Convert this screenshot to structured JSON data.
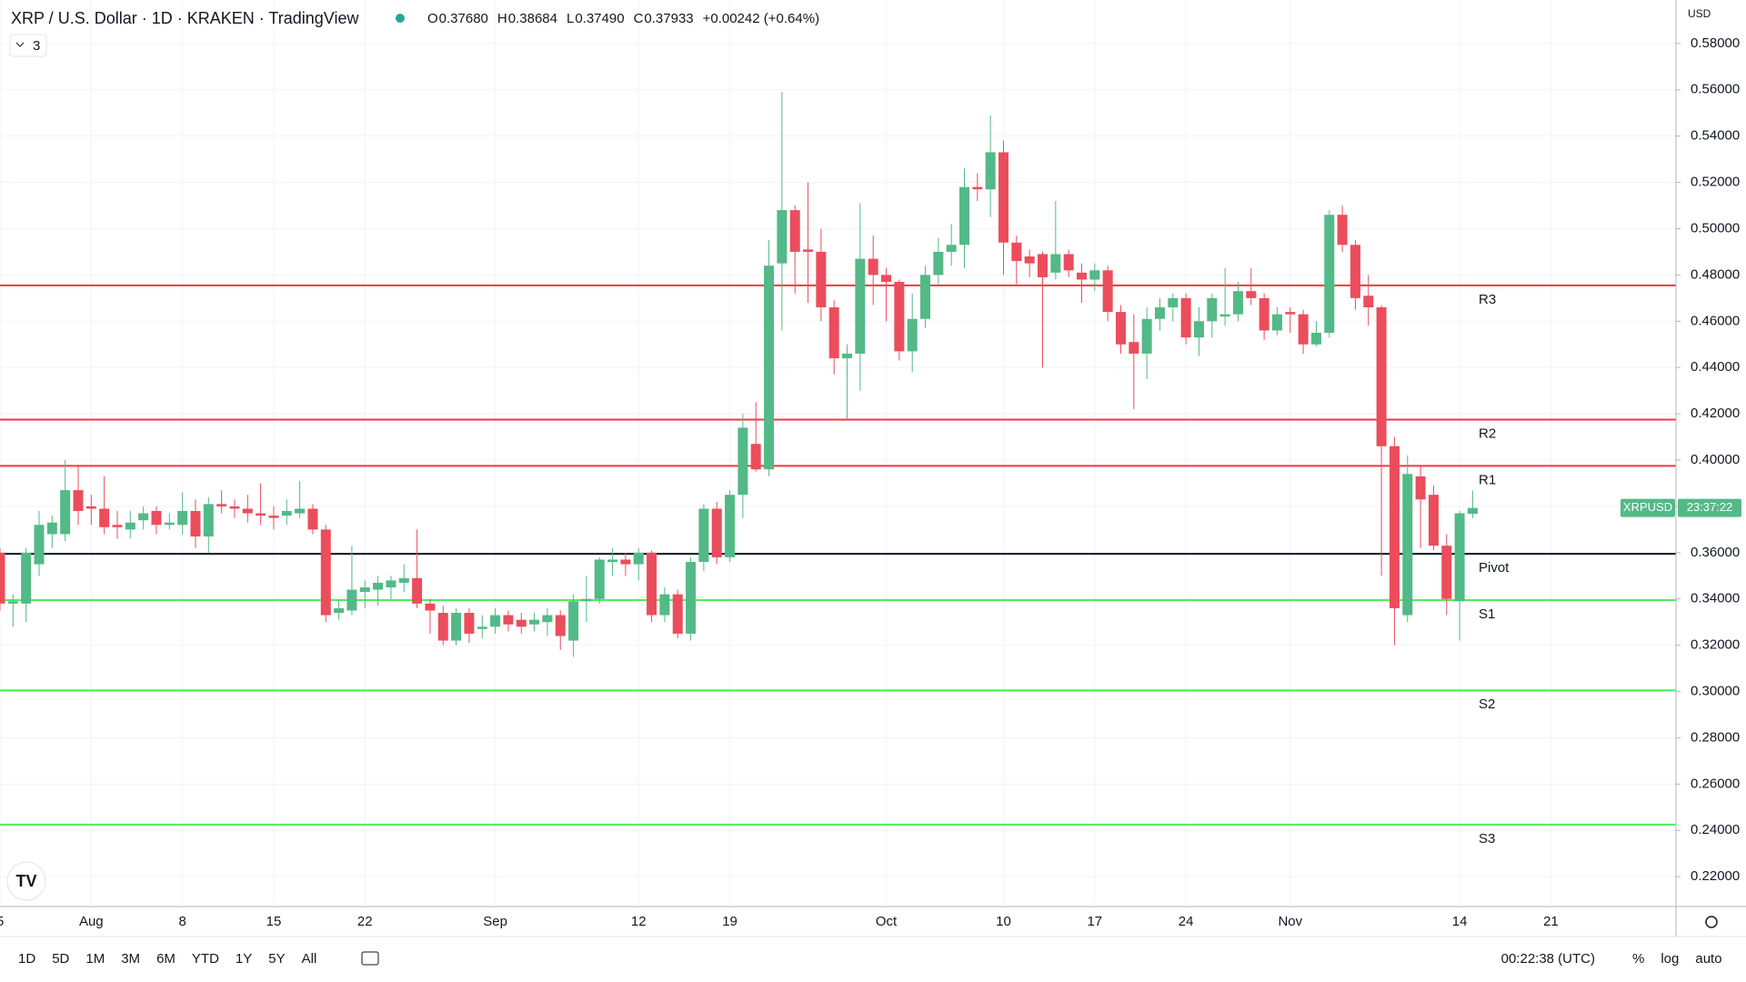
{
  "chart_data": {
    "type": "candlestick",
    "title": "XRP / U.S. Dollar · 1D · KRAKEN · TradingView",
    "ohlc_legend": [
      {
        "label": "O",
        "value": "0.37680"
      },
      {
        "label": "H",
        "value": "0.38684"
      },
      {
        "label": "L",
        "value": "0.37490"
      },
      {
        "label": "C",
        "value": "0.37933"
      }
    ],
    "change": "+0.00242 (+0.64%)",
    "indicator_count": "3",
    "currency": "USD",
    "symbol": "XRPUSD",
    "countdown": "23:37:22",
    "up_color": "#53b987",
    "down_color": "#eb4d5c",
    "open": [
      0.36,
      0.338,
      0.338,
      0.355,
      0.368,
      0.368,
      0.387,
      0.38,
      0.379,
      0.372,
      0.37,
      0.374,
      0.378,
      0.372,
      0.372,
      0.378,
      0.367,
      0.381,
      0.38,
      0.379,
      0.377,
      0.376,
      0.376,
      0.377,
      0.379,
      0.37,
      0.334,
      0.335,
      0.343,
      0.344,
      0.345,
      0.347,
      0.349,
      0.338,
      0.334,
      0.322,
      0.334,
      0.327,
      0.328,
      0.333,
      0.331,
      0.329,
      0.33,
      0.333,
      0.322,
      0.339,
      0.34,
      0.356,
      0.357,
      0.355,
      0.36,
      0.333,
      0.342,
      0.325,
      0.356,
      0.379,
      0.358,
      0.385,
      0.407,
      0.396,
      0.485,
      0.508,
      0.491,
      0.49,
      0.466,
      0.444,
      0.446,
      0.487,
      0.48,
      0.477,
      0.447,
      0.461,
      0.48,
      0.49,
      0.493,
      0.518,
      0.517,
      0.533,
      0.494,
      0.488,
      0.489,
      0.481,
      0.489,
      0.481,
      0.478,
      0.482,
      0.464,
      0.451,
      0.446,
      0.461,
      0.466,
      0.47,
      0.453,
      0.46,
      0.462,
      0.463,
      0.473,
      0.47,
      0.456,
      0.464,
      0.463,
      0.45,
      0.455,
      0.506,
      0.493,
      0.471,
      0.466,
      0.406,
      0.333,
      0.393,
      0.385,
      0.363,
      0.339,
      0.3768
    ],
    "high": [
      0.362,
      0.342,
      0.362,
      0.378,
      0.376,
      0.4,
      0.398,
      0.385,
      0.393,
      0.378,
      0.378,
      0.38,
      0.38,
      0.377,
      0.386,
      0.383,
      0.384,
      0.387,
      0.383,
      0.385,
      0.39,
      0.38,
      0.383,
      0.391,
      0.381,
      0.372,
      0.34,
      0.363,
      0.348,
      0.35,
      0.35,
      0.355,
      0.37,
      0.34,
      0.337,
      0.336,
      0.336,
      0.333,
      0.336,
      0.335,
      0.334,
      0.334,
      0.336,
      0.335,
      0.342,
      0.35,
      0.358,
      0.362,
      0.36,
      0.362,
      0.361,
      0.345,
      0.344,
      0.358,
      0.381,
      0.382,
      0.387,
      0.42,
      0.425,
      0.495,
      0.559,
      0.51,
      0.52,
      0.5,
      0.469,
      0.45,
      0.511,
      0.497,
      0.483,
      0.478,
      0.472,
      0.484,
      0.496,
      0.502,
      0.526,
      0.524,
      0.549,
      0.538,
      0.497,
      0.491,
      0.49,
      0.512,
      0.491,
      0.485,
      0.485,
      0.484,
      0.467,
      0.463,
      0.466,
      0.47,
      0.472,
      0.472,
      0.466,
      0.472,
      0.483,
      0.477,
      0.483,
      0.472,
      0.466,
      0.466,
      0.465,
      0.46,
      0.508,
      0.51,
      0.495,
      0.48,
      0.467,
      0.41,
      0.402,
      0.398,
      0.389,
      0.368,
      0.378,
      0.3868
    ],
    "low": [
      0.335,
      0.328,
      0.33,
      0.35,
      0.362,
      0.365,
      0.372,
      0.372,
      0.368,
      0.366,
      0.366,
      0.37,
      0.368,
      0.37,
      0.368,
      0.362,
      0.36,
      0.377,
      0.375,
      0.373,
      0.372,
      0.37,
      0.372,
      0.375,
      0.368,
      0.33,
      0.331,
      0.333,
      0.336,
      0.337,
      0.34,
      0.343,
      0.336,
      0.325,
      0.32,
      0.32,
      0.321,
      0.323,
      0.325,
      0.326,
      0.325,
      0.326,
      0.324,
      0.318,
      0.315,
      0.33,
      0.338,
      0.35,
      0.35,
      0.348,
      0.33,
      0.33,
      0.323,
      0.322,
      0.352,
      0.355,
      0.356,
      0.375,
      0.395,
      0.393,
      0.456,
      0.472,
      0.468,
      0.46,
      0.437,
      0.418,
      0.43,
      0.467,
      0.46,
      0.443,
      0.438,
      0.457,
      0.476,
      0.484,
      0.483,
      0.512,
      0.505,
      0.48,
      0.476,
      0.479,
      0.44,
      0.478,
      0.479,
      0.468,
      0.473,
      0.46,
      0.446,
      0.422,
      0.435,
      0.456,
      0.46,
      0.45,
      0.445,
      0.453,
      0.458,
      0.46,
      0.467,
      0.452,
      0.454,
      0.455,
      0.446,
      0.449,
      0.453,
      0.49,
      0.465,
      0.458,
      0.35,
      0.32,
      0.33,
      0.362,
      0.361,
      0.333,
      0.322,
      0.3749
    ],
    "close": [
      0.338,
      0.339,
      0.36,
      0.372,
      0.373,
      0.387,
      0.378,
      0.379,
      0.371,
      0.371,
      0.373,
      0.377,
      0.372,
      0.373,
      0.378,
      0.367,
      0.381,
      0.38,
      0.379,
      0.377,
      0.376,
      0.375,
      0.378,
      0.379,
      0.37,
      0.333,
      0.336,
      0.344,
      0.345,
      0.347,
      0.348,
      0.349,
      0.338,
      0.335,
      0.322,
      0.334,
      0.325,
      0.328,
      0.333,
      0.329,
      0.328,
      0.331,
      0.333,
      0.324,
      0.339,
      0.34,
      0.357,
      0.357,
      0.355,
      0.36,
      0.333,
      0.342,
      0.325,
      0.356,
      0.379,
      0.358,
      0.385,
      0.414,
      0.396,
      0.484,
      0.508,
      0.49,
      0.49,
      0.466,
      0.444,
      0.446,
      0.487,
      0.48,
      0.477,
      0.447,
      0.461,
      0.48,
      0.49,
      0.493,
      0.518,
      0.517,
      0.533,
      0.494,
      0.486,
      0.485,
      0.479,
      0.489,
      0.482,
      0.478,
      0.482,
      0.464,
      0.45,
      0.446,
      0.461,
      0.466,
      0.47,
      0.453,
      0.46,
      0.47,
      0.463,
      0.473,
      0.47,
      0.456,
      0.463,
      0.463,
      0.45,
      0.455,
      0.506,
      0.493,
      0.47,
      0.466,
      0.406,
      0.336,
      0.394,
      0.383,
      0.363,
      0.34,
      0.377,
      0.37933
    ],
    "levels": [
      {
        "name": "R3",
        "value": 0.4755,
        "color": "#f23645"
      },
      {
        "name": "R2",
        "value": 0.4175,
        "color": "#f23645"
      },
      {
        "name": "R1",
        "value": 0.3975,
        "color": "#f23645"
      },
      {
        "name": "Pivot",
        "value": 0.3595,
        "color": "#131722"
      },
      {
        "name": "S1",
        "value": 0.3395,
        "color": "#4cef5a"
      },
      {
        "name": "S2",
        "value": 0.3005,
        "color": "#4cef5a"
      },
      {
        "name": "S3",
        "value": 0.2425,
        "color": "#4cef5a"
      }
    ],
    "xlim": [
      0,
      128.6
    ],
    "xticks": [
      {
        "value": 0,
        "label": "5"
      },
      {
        "value": 7,
        "label": "Aug"
      },
      {
        "value": 14,
        "label": "8"
      },
      {
        "value": 21,
        "label": "15"
      },
      {
        "value": 28,
        "label": "22"
      },
      {
        "value": 38,
        "label": "Sep"
      },
      {
        "value": 49,
        "label": "12"
      },
      {
        "value": 56,
        "label": "19"
      },
      {
        "value": 68,
        "label": "Oct"
      },
      {
        "value": 77,
        "label": "10"
      },
      {
        "value": 84,
        "label": "17"
      },
      {
        "value": 91,
        "label": "24"
      },
      {
        "value": 99,
        "label": "Nov"
      },
      {
        "value": 112,
        "label": "14"
      },
      {
        "value": 119,
        "label": "21"
      }
    ],
    "ylim": [
      0.2071,
      0.5988
    ],
    "yticks": [
      {
        "value": 0.22,
        "label": "0.22000"
      },
      {
        "value": 0.24,
        "label": "0.24000"
      },
      {
        "value": 0.26,
        "label": "0.26000"
      },
      {
        "value": 0.28,
        "label": "0.28000"
      },
      {
        "value": 0.3,
        "label": "0.30000"
      },
      {
        "value": 0.32,
        "label": "0.32000"
      },
      {
        "value": 0.34,
        "label": "0.34000"
      },
      {
        "value": 0.36,
        "label": "0.36000"
      },
      {
        "value": 0.38,
        "label": "0.38000"
      },
      {
        "value": 0.4,
        "label": "0.40000"
      },
      {
        "value": 0.42,
        "label": "0.42000"
      },
      {
        "value": 0.44,
        "label": "0.44000"
      },
      {
        "value": 0.46,
        "label": "0.46000"
      },
      {
        "value": 0.48,
        "label": "0.48000"
      },
      {
        "value": 0.5,
        "label": "0.50000"
      },
      {
        "value": 0.52,
        "label": "0.52000"
      },
      {
        "value": 0.54,
        "label": "0.54000"
      },
      {
        "value": 0.56,
        "label": "0.56000"
      },
      {
        "value": 0.58,
        "label": "0.58000"
      }
    ],
    "grid": true,
    "toolbar": {
      "ranges": [
        "1D",
        "5D",
        "1M",
        "3M",
        "6M",
        "YTD",
        "1Y",
        "5Y",
        "All"
      ],
      "clock": "00:22:38 (UTC)",
      "options": [
        "%",
        "log",
        "auto"
      ]
    }
  }
}
